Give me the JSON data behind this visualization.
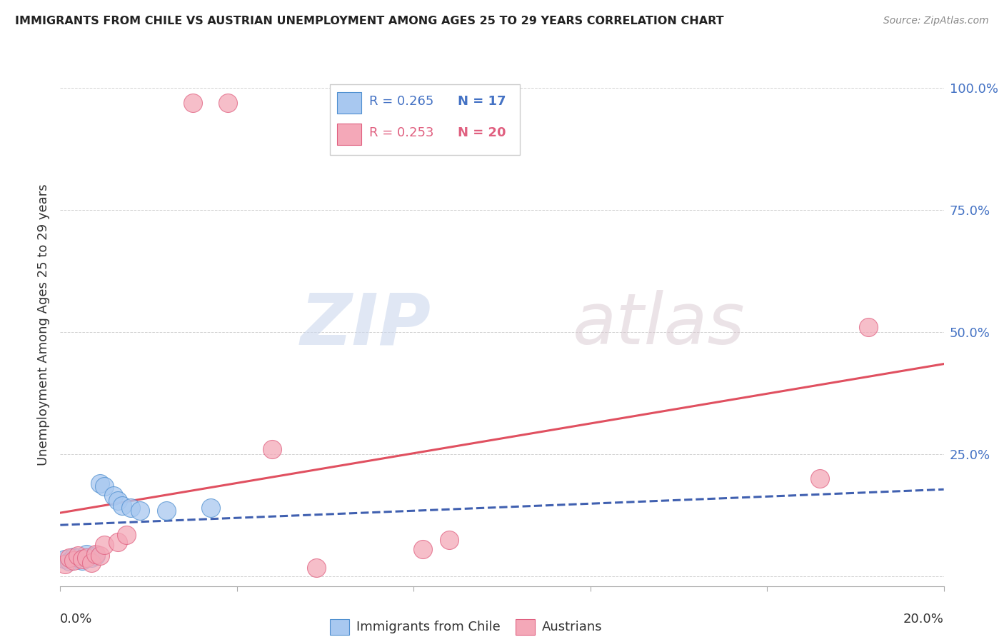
{
  "title": "IMMIGRANTS FROM CHILE VS AUSTRIAN UNEMPLOYMENT AMONG AGES 25 TO 29 YEARS CORRELATION CHART",
  "source": "Source: ZipAtlas.com",
  "ylabel": "Unemployment Among Ages 25 to 29 years",
  "xlim": [
    0.0,
    0.2
  ],
  "ylim": [
    -0.02,
    1.05
  ],
  "yticks": [
    0.0,
    0.25,
    0.5,
    0.75,
    1.0
  ],
  "ytick_labels": [
    "",
    "25.0%",
    "50.0%",
    "75.0%",
    "100.0%"
  ],
  "watermark_zip": "ZIP",
  "watermark_atlas": "atlas",
  "legend_blue_R": "R = 0.265",
  "legend_blue_N": "N = 17",
  "legend_pink_R": "R = 0.253",
  "legend_pink_N": "N = 20",
  "blue_fill": "#A8C8F0",
  "blue_edge": "#5090D0",
  "pink_fill": "#F4A8B8",
  "pink_edge": "#E06080",
  "blue_line_color": "#4060B0",
  "pink_line_color": "#E05060",
  "blue_scatter": [
    [
      0.001,
      0.035
    ],
    [
      0.002,
      0.03
    ],
    [
      0.003,
      0.04
    ],
    [
      0.004,
      0.038
    ],
    [
      0.005,
      0.032
    ],
    [
      0.006,
      0.045
    ],
    [
      0.007,
      0.038
    ],
    [
      0.008,
      0.042
    ],
    [
      0.009,
      0.19
    ],
    [
      0.01,
      0.185
    ],
    [
      0.012,
      0.165
    ],
    [
      0.013,
      0.155
    ],
    [
      0.014,
      0.145
    ],
    [
      0.016,
      0.14
    ],
    [
      0.018,
      0.135
    ],
    [
      0.024,
      0.135
    ],
    [
      0.034,
      0.14
    ]
  ],
  "pink_scatter": [
    [
      0.001,
      0.025
    ],
    [
      0.002,
      0.038
    ],
    [
      0.003,
      0.032
    ],
    [
      0.004,
      0.042
    ],
    [
      0.005,
      0.035
    ],
    [
      0.006,
      0.038
    ],
    [
      0.007,
      0.028
    ],
    [
      0.008,
      0.045
    ],
    [
      0.009,
      0.042
    ],
    [
      0.01,
      0.065
    ],
    [
      0.013,
      0.07
    ],
    [
      0.015,
      0.085
    ],
    [
      0.03,
      0.97
    ],
    [
      0.038,
      0.97
    ],
    [
      0.048,
      0.26
    ],
    [
      0.058,
      0.018
    ],
    [
      0.082,
      0.055
    ],
    [
      0.088,
      0.075
    ],
    [
      0.172,
      0.2
    ],
    [
      0.183,
      0.51
    ]
  ],
  "blue_trendline": [
    [
      0.0,
      0.105
    ],
    [
      0.2,
      0.178
    ]
  ],
  "pink_trendline": [
    [
      0.0,
      0.13
    ],
    [
      0.2,
      0.435
    ]
  ]
}
